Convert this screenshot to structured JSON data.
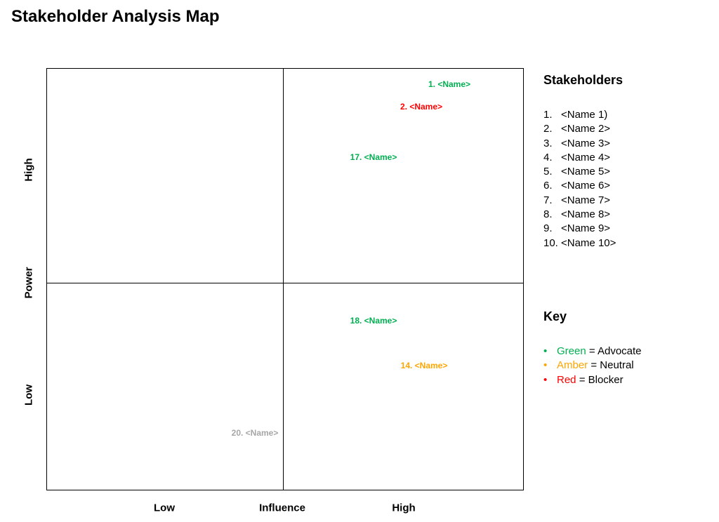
{
  "title": "Stakeholder Analysis Map",
  "axes": {
    "y_low": "Low",
    "y_label": "Power",
    "y_high": "High",
    "x_low": "Low",
    "x_label": "Influence",
    "x_high": "High"
  },
  "points": [
    {
      "label": "1. <Name>",
      "color": "#00b050"
    },
    {
      "label": "2. <Name>",
      "color": "#ff0000"
    },
    {
      "label": "17. <Name>",
      "color": "#00b050"
    },
    {
      "label": "18. <Name>",
      "color": "#00b050"
    },
    {
      "label": "14. <Name>",
      "color": "#ffa500"
    },
    {
      "label": "20. <Name>",
      "color": "#a6a6a6"
    }
  ],
  "stakeholders": {
    "heading": "Stakeholders",
    "items": [
      {
        "num": "1.",
        "name": "<Name 1)"
      },
      {
        "num": "2.",
        "name": "<Name 2>"
      },
      {
        "num": "3.",
        "name": "<Name 3>"
      },
      {
        "num": "4.",
        "name": "<Name 4>"
      },
      {
        "num": "5.",
        "name": "<Name 5>"
      },
      {
        "num": "6.",
        "name": "<Name 6>"
      },
      {
        "num": "7.",
        "name": "<Name 7>"
      },
      {
        "num": "8.",
        "name": "<Name 8>"
      },
      {
        "num": "9.",
        "name": "<Name 9>"
      },
      {
        "num": "10.",
        "name": "<Name 10>"
      }
    ]
  },
  "key": {
    "heading": "Key",
    "items": [
      {
        "bullet": "•",
        "color_word": "Green",
        "meaning": " = Advocate",
        "color": "#00b050"
      },
      {
        "bullet": "•",
        "color_word": "Amber",
        "meaning": " = Neutral",
        "color": "#ffa500"
      },
      {
        "bullet": "•",
        "color_word": "Red",
        "meaning": " = Blocker",
        "color": "#ff0000"
      }
    ]
  }
}
